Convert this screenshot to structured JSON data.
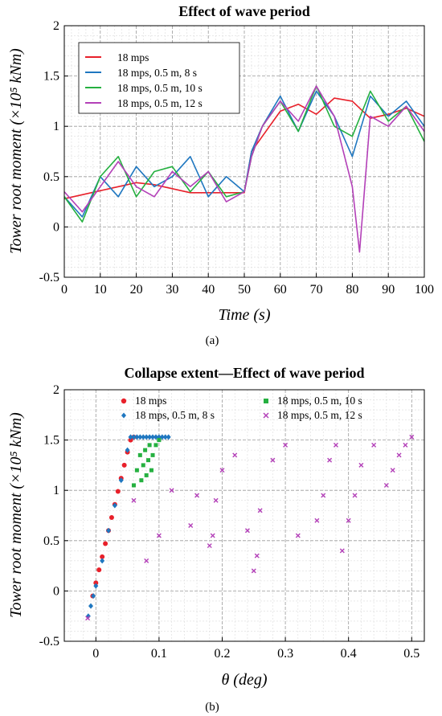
{
  "figure": {
    "panel_a_label": "(a)",
    "panel_b_label": "(b)"
  },
  "colors": {
    "red": "#e8202a",
    "blue": "#1f77c0",
    "green": "#25b040",
    "purple": "#b340b8"
  },
  "chart_data": [
    {
      "type": "line",
      "title": "Effect of wave period",
      "xlabel": "Time (s)",
      "ylabel": "Tower root moment (×10⁵ kNm)",
      "xlim": [
        0,
        100
      ],
      "ylim": [
        -0.5,
        2
      ],
      "xticks": [
        "0",
        "10",
        "20",
        "30",
        "40",
        "50",
        "60",
        "70",
        "80",
        "90",
        "100"
      ],
      "yticks": [
        "-0.5",
        "0",
        "0.5",
        "1",
        "1.5",
        "2"
      ],
      "grid": true,
      "legend": "top-left",
      "series": [
        {
          "name": "18 mps",
          "color": "#e8202a",
          "x": [
            0,
            5,
            10,
            15,
            20,
            25,
            30,
            35,
            40,
            45,
            50,
            52,
            55,
            60,
            65,
            70,
            75,
            80,
            85,
            90,
            95,
            100
          ],
          "y": [
            0.28,
            0.32,
            0.36,
            0.4,
            0.44,
            0.42,
            0.38,
            0.34,
            0.34,
            0.34,
            0.34,
            0.75,
            0.9,
            1.15,
            1.22,
            1.12,
            1.28,
            1.25,
            1.08,
            1.12,
            1.18,
            1.1
          ]
        },
        {
          "name": "18 mps, 0.5 m, 8 s",
          "color": "#1f77c0",
          "x": [
            0,
            5,
            10,
            15,
            20,
            25,
            30,
            35,
            40,
            45,
            50,
            52,
            55,
            60,
            65,
            70,
            75,
            80,
            85,
            90,
            95,
            100
          ],
          "y": [
            0.3,
            0.1,
            0.5,
            0.3,
            0.6,
            0.4,
            0.5,
            0.7,
            0.3,
            0.5,
            0.35,
            0.75,
            1.0,
            1.3,
            0.95,
            1.35,
            1.1,
            0.7,
            1.3,
            1.1,
            1.25,
            1.0
          ]
        },
        {
          "name": "18 mps, 0.5 m, 10 s",
          "color": "#25b040",
          "x": [
            0,
            5,
            10,
            15,
            20,
            25,
            30,
            35,
            40,
            45,
            50,
            52,
            55,
            60,
            65,
            70,
            75,
            80,
            85,
            90,
            95,
            100
          ],
          "y": [
            0.3,
            0.05,
            0.5,
            0.7,
            0.3,
            0.55,
            0.6,
            0.35,
            0.55,
            0.3,
            0.35,
            0.7,
            1.0,
            1.25,
            0.95,
            1.4,
            1.0,
            0.9,
            1.35,
            1.05,
            1.2,
            0.85
          ]
        },
        {
          "name": "18 mps, 0.5 m, 12 s",
          "color": "#b340b8",
          "x": [
            0,
            5,
            10,
            15,
            20,
            25,
            30,
            35,
            40,
            45,
            50,
            52,
            55,
            60,
            65,
            70,
            75,
            80,
            82,
            85,
            90,
            95,
            100
          ],
          "y": [
            0.35,
            0.15,
            0.4,
            0.65,
            0.4,
            0.3,
            0.55,
            0.4,
            0.55,
            0.25,
            0.35,
            0.7,
            1.0,
            1.25,
            1.05,
            1.4,
            1.1,
            0.4,
            -0.25,
            1.1,
            1.0,
            1.2,
            0.95
          ]
        }
      ]
    },
    {
      "type": "scatter",
      "title": "Collapse extent—Effect of wave period",
      "xlabel": "θ (deg)",
      "ylabel": "Tower root moment (×10⁵ kNm)",
      "xlim": [
        -0.05,
        0.52
      ],
      "ylim": [
        -0.5,
        2
      ],
      "xticks": [
        "0",
        "0.1",
        "0.2",
        "0.3",
        "0.4",
        "0.5"
      ],
      "yticks": [
        "-0.5",
        "0",
        "0.5",
        "1",
        "1.5",
        "2"
      ],
      "grid": true,
      "legend": "top",
      "series": [
        {
          "name": "18 mps",
          "color": "#e8202a",
          "marker": "circle",
          "x": [
            -0.005,
            0.0,
            0.005,
            0.01,
            0.015,
            0.02,
            0.025,
            0.03,
            0.035,
            0.04,
            0.045,
            0.05,
            0.055,
            0.06
          ],
          "y": [
            -0.05,
            0.08,
            0.21,
            0.34,
            0.47,
            0.6,
            0.73,
            0.86,
            0.99,
            1.12,
            1.25,
            1.38,
            1.5,
            1.53
          ]
        },
        {
          "name": "18 mps, 0.5 m, 8 s",
          "color": "#1f77c0",
          "marker": "diamond",
          "x": [
            -0.012,
            -0.008,
            -0.004,
            0.0,
            0.01,
            0.02,
            0.03,
            0.04,
            0.05,
            0.055,
            0.06,
            0.065,
            0.07,
            0.075,
            0.08,
            0.085,
            0.09,
            0.095,
            0.1,
            0.105,
            0.11,
            0.115
          ],
          "y": [
            -0.25,
            -0.15,
            -0.05,
            0.05,
            0.3,
            0.6,
            0.85,
            1.1,
            1.4,
            1.53,
            1.53,
            1.53,
            1.53,
            1.53,
            1.53,
            1.53,
            1.53,
            1.53,
            1.53,
            1.53,
            1.53,
            1.53
          ]
        },
        {
          "name": "18 mps, 0.5 m, 10 s",
          "color": "#25b040",
          "marker": "square",
          "x": [
            0.06,
            0.065,
            0.07,
            0.072,
            0.075,
            0.078,
            0.08,
            0.083,
            0.085,
            0.088,
            0.09,
            0.095,
            0.1
          ],
          "y": [
            1.05,
            1.2,
            1.35,
            1.1,
            1.25,
            1.4,
            1.15,
            1.3,
            1.45,
            1.2,
            1.35,
            1.45,
            1.5
          ]
        },
        {
          "name": "18 mps, 0.5 m, 12 s",
          "color": "#b340b8",
          "marker": "x",
          "x": [
            -0.013,
            0.06,
            0.08,
            0.1,
            0.12,
            0.15,
            0.16,
            0.18,
            0.185,
            0.19,
            0.2,
            0.22,
            0.24,
            0.25,
            0.255,
            0.26,
            0.28,
            0.3,
            0.32,
            0.35,
            0.36,
            0.37,
            0.38,
            0.39,
            0.4,
            0.41,
            0.42,
            0.44,
            0.46,
            0.47,
            0.48,
            0.49,
            0.5
          ],
          "y": [
            -0.27,
            0.9,
            0.3,
            0.55,
            1.0,
            0.65,
            0.95,
            0.45,
            0.55,
            0.9,
            1.2,
            1.35,
            0.6,
            0.2,
            0.35,
            0.8,
            1.3,
            1.45,
            0.55,
            0.7,
            0.95,
            1.3,
            1.45,
            0.4,
            0.7,
            0.95,
            1.25,
            1.45,
            1.05,
            1.2,
            1.35,
            1.45,
            1.53
          ]
        }
      ]
    }
  ]
}
